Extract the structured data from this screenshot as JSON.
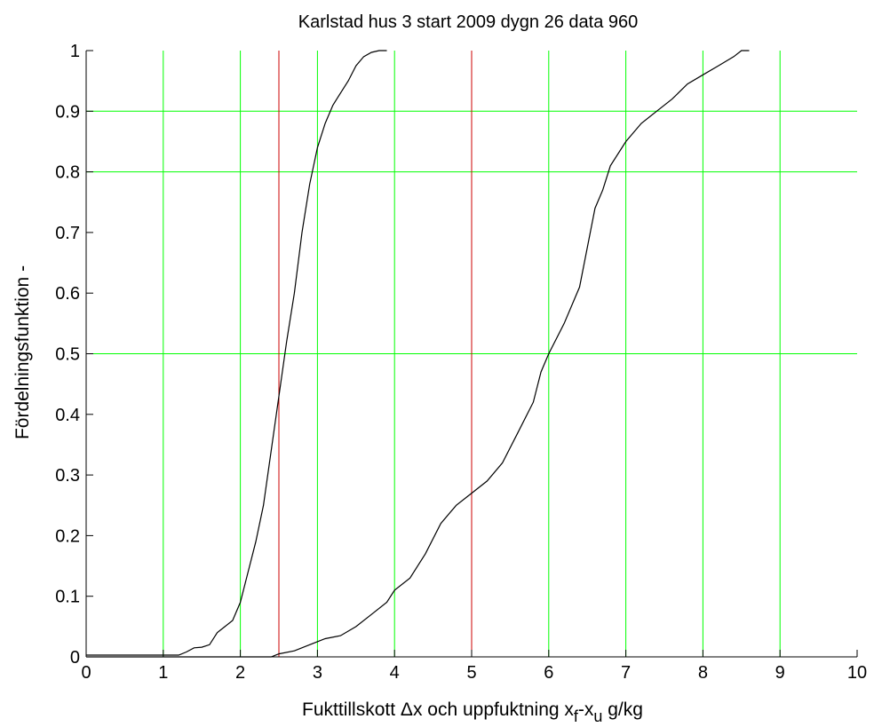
{
  "chart_data": {
    "type": "line",
    "title": "Karlstad    hus 3  start 2009 dygn 26  data 960",
    "xlabel": {
      "before_delta": "Fukttillskott  ",
      "delta": "Δ",
      "after_delta": "x och uppfuktning x",
      "sub_f": "f",
      "dash": "-x",
      "sub_u": "u",
      "unit": "  g/kg"
    },
    "ylabel": "Fördelningsfunktion    -",
    "xlim": [
      0,
      10
    ],
    "ylim": [
      0,
      1
    ],
    "xticks": [
      0,
      1,
      2,
      3,
      4,
      5,
      6,
      7,
      8,
      9,
      10
    ],
    "yticks": [
      0,
      0.1,
      0.2,
      0.3,
      0.4,
      0.5,
      0.6,
      0.7,
      0.8,
      0.9,
      1
    ],
    "xtick_labels": [
      "0",
      "1",
      "2",
      "3",
      "4",
      "5",
      "6",
      "7",
      "8",
      "9",
      "10"
    ],
    "ytick_labels": [
      "0",
      "0.1",
      "0.2",
      "0.3",
      "0.4",
      "0.5",
      "0.6",
      "0.7",
      "0.8",
      "0.9",
      "1"
    ],
    "grid": {
      "vertical_green": [
        1,
        2,
        3,
        4,
        6,
        7,
        8,
        9
      ],
      "vertical_red": [
        2.5,
        5
      ],
      "horizontal_green": [
        0.5,
        0.8,
        0.9
      ]
    },
    "colors": {
      "curve": "#000000",
      "grid_green": "#00ff00",
      "grid_red": "#cc0000",
      "axis": "#000000"
    },
    "series": [
      {
        "points": [
          [
            0,
            0.003
          ],
          [
            1.2,
            0.003
          ],
          [
            1.3,
            0.008
          ],
          [
            1.4,
            0.015
          ],
          [
            1.5,
            0.016
          ],
          [
            1.6,
            0.02
          ],
          [
            1.7,
            0.04
          ],
          [
            1.8,
            0.05
          ],
          [
            1.9,
            0.06
          ],
          [
            2.0,
            0.09
          ],
          [
            2.1,
            0.14
          ],
          [
            2.2,
            0.19
          ],
          [
            2.3,
            0.25
          ],
          [
            2.4,
            0.34
          ],
          [
            2.5,
            0.43
          ],
          [
            2.6,
            0.52
          ],
          [
            2.7,
            0.6
          ],
          [
            2.8,
            0.7
          ],
          [
            2.9,
            0.78
          ],
          [
            3.0,
            0.84
          ],
          [
            3.1,
            0.88
          ],
          [
            3.2,
            0.91
          ],
          [
            3.3,
            0.93
          ],
          [
            3.4,
            0.95
          ],
          [
            3.5,
            0.975
          ],
          [
            3.6,
            0.99
          ],
          [
            3.7,
            0.997
          ],
          [
            3.8,
            1.0
          ],
          [
            3.9,
            1.0
          ]
        ]
      },
      {
        "points": [
          [
            0,
            0.0
          ],
          [
            2.4,
            0.0
          ],
          [
            2.5,
            0.005
          ],
          [
            2.7,
            0.01
          ],
          [
            2.9,
            0.02
          ],
          [
            3.1,
            0.03
          ],
          [
            3.3,
            0.035
          ],
          [
            3.5,
            0.05
          ],
          [
            3.7,
            0.07
          ],
          [
            3.9,
            0.09
          ],
          [
            4.0,
            0.11
          ],
          [
            4.2,
            0.13
          ],
          [
            4.4,
            0.17
          ],
          [
            4.6,
            0.22
          ],
          [
            4.8,
            0.25
          ],
          [
            5.0,
            0.27
          ],
          [
            5.2,
            0.29
          ],
          [
            5.4,
            0.32
          ],
          [
            5.6,
            0.37
          ],
          [
            5.8,
            0.42
          ],
          [
            5.9,
            0.47
          ],
          [
            6.0,
            0.5
          ],
          [
            6.2,
            0.55
          ],
          [
            6.4,
            0.61
          ],
          [
            6.6,
            0.74
          ],
          [
            6.7,
            0.77
          ],
          [
            6.8,
            0.81
          ],
          [
            7.0,
            0.85
          ],
          [
            7.2,
            0.88
          ],
          [
            7.4,
            0.9
          ],
          [
            7.6,
            0.92
          ],
          [
            7.8,
            0.945
          ],
          [
            8.0,
            0.96
          ],
          [
            8.2,
            0.975
          ],
          [
            8.4,
            0.99
          ],
          [
            8.5,
            1.0
          ],
          [
            8.6,
            1.0
          ]
        ]
      }
    ]
  }
}
